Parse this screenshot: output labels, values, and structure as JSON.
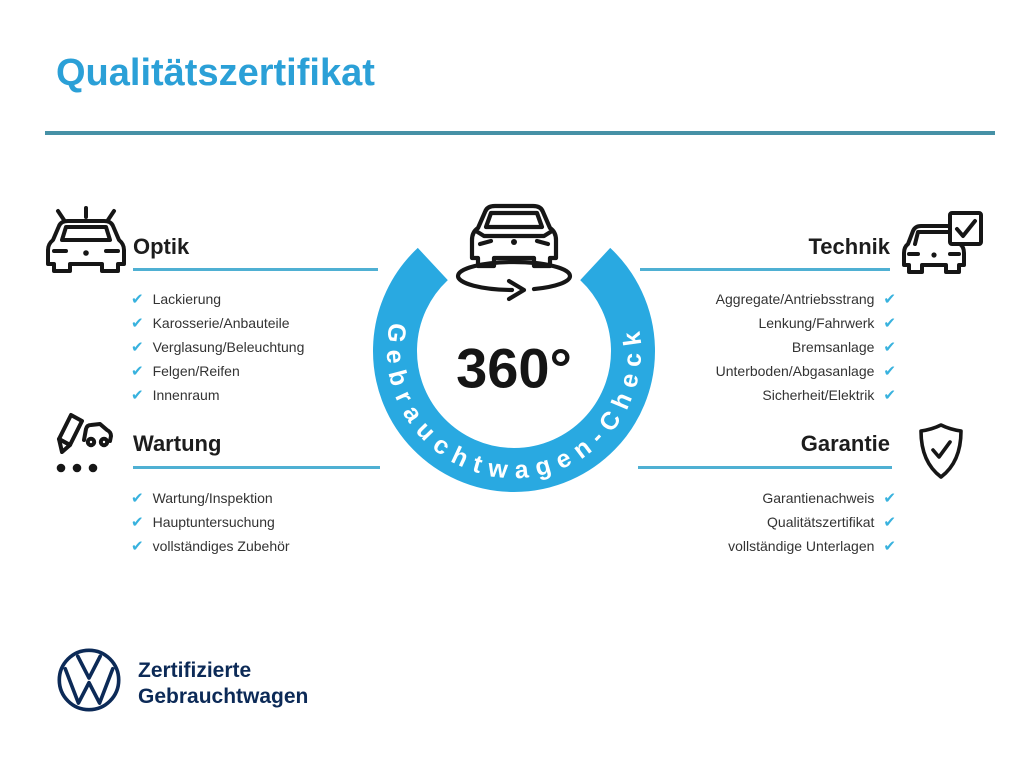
{
  "title": "Qualitätszertifikat",
  "colors": {
    "title-blue": "#2ba0d7",
    "ring-blue": "#29a9e1",
    "check-blue": "#38b2de",
    "rule-teal": "#4691a6",
    "section-rule-blue": "#4fb0d3",
    "vw-navy": "#0c2a57",
    "text-dark": "#333333"
  },
  "ui": {
    "check_glyph": "✔"
  },
  "badge": {
    "degrees": "360°",
    "ring_label": "Gebrauchtwagen-Check"
  },
  "sections": {
    "optik": {
      "heading": "Optik",
      "icon": "car-shine-icon",
      "items": [
        "Lackierung",
        "Karosserie/Anbauteile",
        "Verglasung/Beleuchtung",
        "Felgen/Reifen",
        "Innenraum"
      ]
    },
    "wartung": {
      "heading": "Wartung",
      "icon": "service-checklist-icon",
      "items": [
        "Wartung/Inspektion",
        "Hauptuntersuchung",
        "vollständiges Zubehör"
      ]
    },
    "technik": {
      "heading": "Technik",
      "icon": "car-checkbox-icon",
      "items": [
        "Aggregate/Antriebsstrang",
        "Lenkung/Fahrwerk",
        "Bremsanlage",
        "Unterboden/Abgasanlage",
        "Sicherheit/Elektrik"
      ]
    },
    "garantie": {
      "heading": "Garantie",
      "icon": "shield-check-icon",
      "items": [
        "Garantienachweis",
        "Qualitätszertifikat",
        "vollständige Unterlagen"
      ]
    }
  },
  "footer": {
    "logo": "vw-logo",
    "line1": "Zertifizierte",
    "line2": "Gebrauchtwagen"
  }
}
